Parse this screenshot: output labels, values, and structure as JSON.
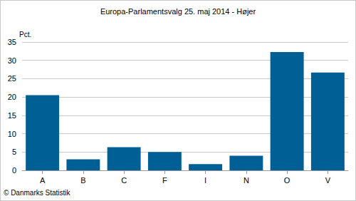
{
  "chart_data": {
    "type": "bar",
    "title": "Europa-Parlamentsvalg 25. maj 2014 - Højer",
    "y_label": "Pct.",
    "annotation": "© Danmarks Statistik",
    "categories": [
      "A",
      "B",
      "C",
      "F",
      "I",
      "N",
      "O",
      "V"
    ],
    "values": [
      20.5,
      3.0,
      6.3,
      5.0,
      1.7,
      4.0,
      32.3,
      26.7
    ],
    "color": "#005f94",
    "ylim": [
      0,
      35
    ],
    "yticks": [
      0,
      5,
      10,
      15,
      20,
      25,
      30,
      35
    ],
    "grid": true
  }
}
